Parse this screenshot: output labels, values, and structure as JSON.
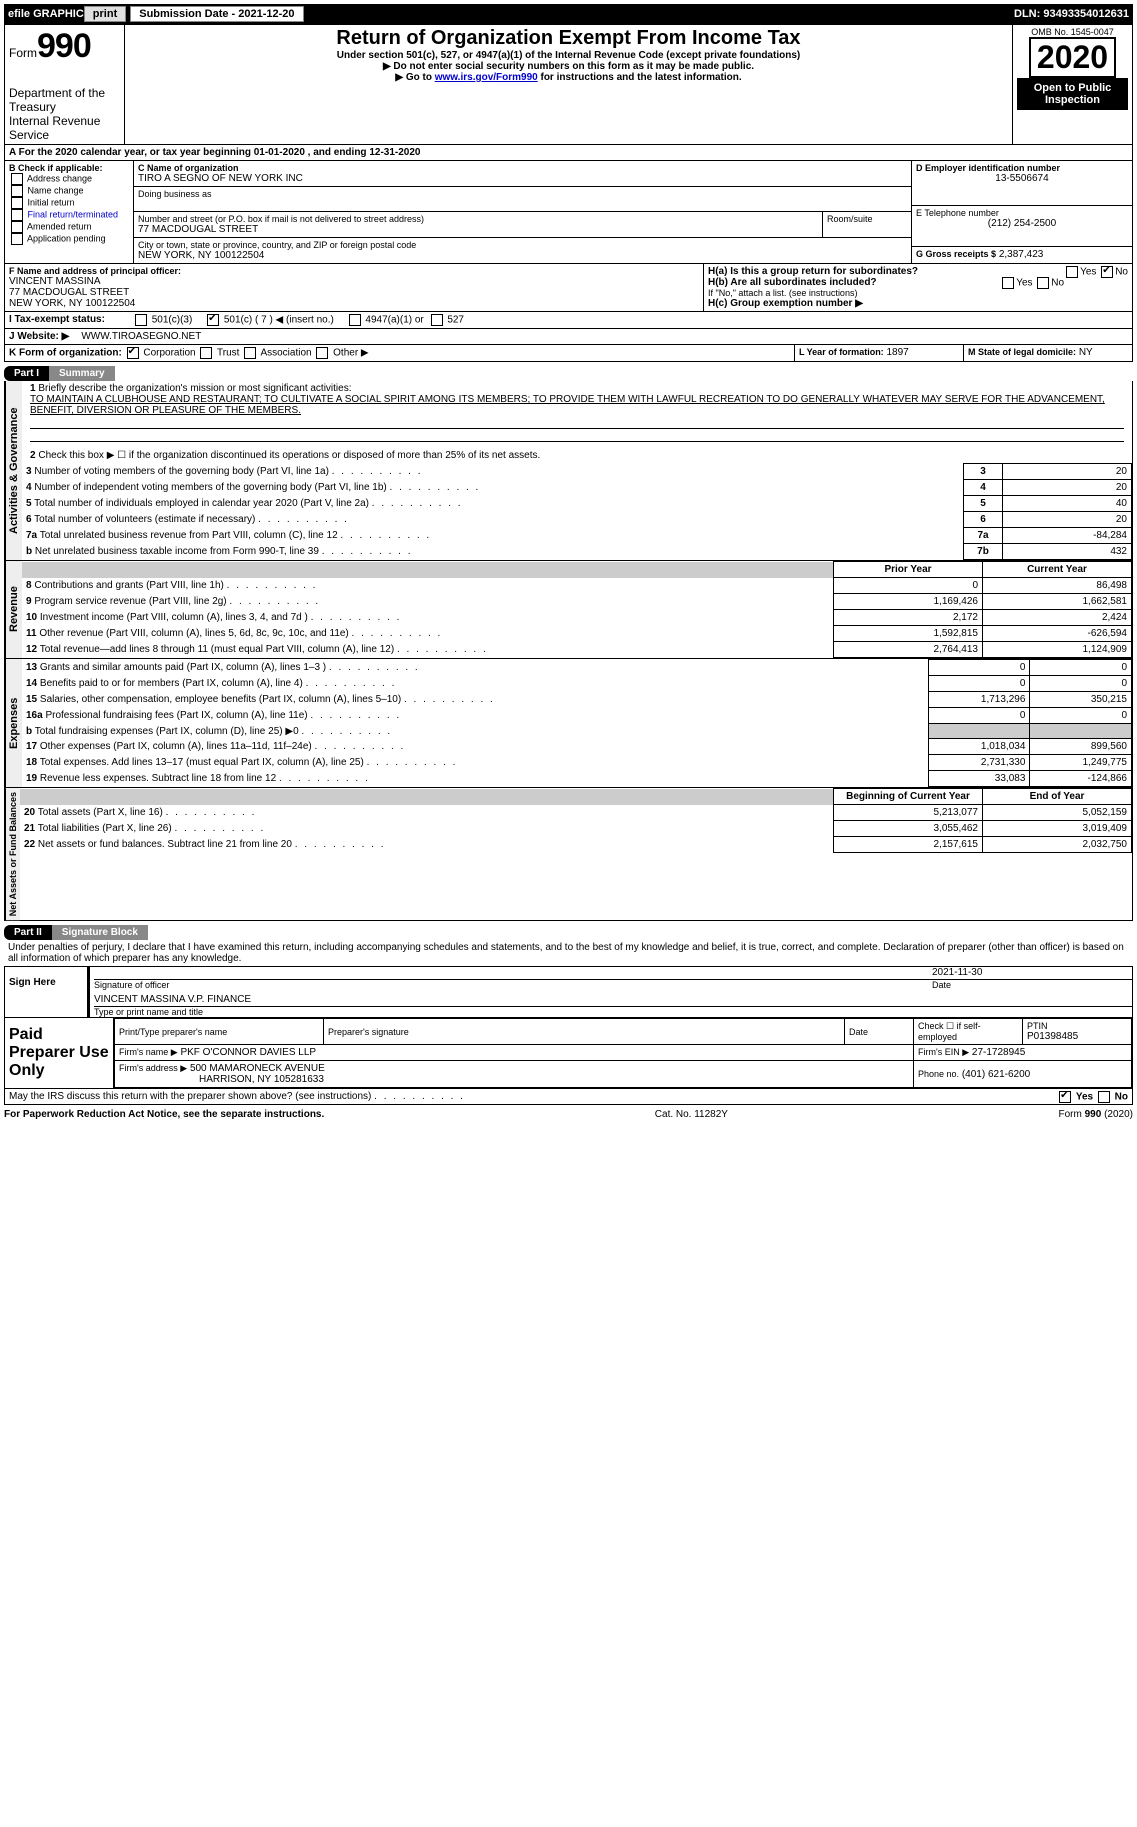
{
  "topbar": {
    "efile": "efile GRAPHIC",
    "print": "print",
    "sub_date_label": "Submission Date - 2021-12-20",
    "dln": "DLN: 93493354012631"
  },
  "header": {
    "form_label": "Form",
    "form_no": "990",
    "dept": "Department of the Treasury\nInternal Revenue Service",
    "title": "Return of Organization Exempt From Income Tax",
    "subtitle": "Under section 501(c), 527, or 4947(a)(1) of the Internal Revenue Code (except private foundations)",
    "note1": "▶ Do not enter social security numbers on this form as it may be made public.",
    "note2_pre": "▶ Go to ",
    "note2_link": "www.irs.gov/Form990",
    "note2_post": " for instructions and the latest information.",
    "omb": "OMB No. 1545-0047",
    "year": "2020",
    "open": "Open to Public Inspection"
  },
  "period": {
    "text": "A For the 2020 calendar year, or tax year beginning 01-01-2020   , and ending 12-31-2020"
  },
  "boxB": {
    "label": "B Check if applicable:",
    "items": [
      "Address change",
      "Name change",
      "Initial return",
      "Final return/terminated",
      "Amended return",
      "Application pending"
    ]
  },
  "boxC": {
    "label": "C Name of organization",
    "name": "TIRO A SEGNO OF NEW YORK INC",
    "dba_label": "Doing business as",
    "addr_label": "Number and street (or P.O. box if mail is not delivered to street address)",
    "room_label": "Room/suite",
    "addr": "77 MACDOUGAL STREET",
    "city_label": "City or town, state or province, country, and ZIP or foreign postal code",
    "city": "NEW YORK, NY  100122504"
  },
  "boxD": {
    "label": "D Employer identification number",
    "value": "13-5506674"
  },
  "boxE": {
    "label": "E Telephone number",
    "value": "(212) 254-2500"
  },
  "boxG": {
    "label": "G Gross receipts $",
    "value": "2,387,423"
  },
  "boxF": {
    "label": "F Name and address of principal officer:",
    "name": "VINCENT MASSINA",
    "addr1": "77 MACDOUGAL STREET",
    "addr2": "NEW YORK, NY  100122504"
  },
  "boxH": {
    "a_label": "H(a)  Is this a group return for subordinates?",
    "b_label": "H(b)  Are all subordinates included?",
    "b_note": "If \"No,\" attach a list. (see instructions)",
    "c_label": "H(c)  Group exemption number ▶",
    "yes": "Yes",
    "no": "No"
  },
  "boxI": {
    "label": "I  Tax-exempt status:",
    "opts": [
      "501(c)(3)",
      "501(c) ( 7 ) ◀ (insert no.)",
      "4947(a)(1) or",
      "527"
    ]
  },
  "boxJ": {
    "label": "J  Website: ▶",
    "value": "WWW.TIROASEGNO.NET"
  },
  "boxK": {
    "label": "K Form of organization:",
    "opts": [
      "Corporation",
      "Trust",
      "Association",
      "Other ▶"
    ]
  },
  "boxL": {
    "label": "L Year of formation:",
    "value": "1897"
  },
  "boxM": {
    "label": "M State of legal domicile:",
    "value": "NY"
  },
  "part1": {
    "label": "Part I",
    "title": "Summary",
    "q1": "Briefly describe the organization's mission or most significant activities:",
    "mission": "TO MAINTAIN A CLUBHOUSE AND RESTAURANT; TO CULTIVATE A SOCIAL SPIRIT AMONG ITS MEMBERS; TO PROVIDE THEM WITH LAWFUL RECREATION TO DO GENERALLY WHATEVER MAY SERVE FOR THE ADVANCEMENT, BENEFIT, DIVERSION OR PLEASURE OF THE MEMBERS.",
    "q2": "Check this box ▶ ☐ if the organization discontinued its operations or disposed of more than 25% of its net assets.",
    "governance_label": "Activities & Governance",
    "revenue_label": "Revenue",
    "expenses_label": "Expenses",
    "netassets_label": "Net Assets or Fund Balances",
    "lines_gov": [
      {
        "n": "3",
        "t": "Number of voting members of the governing body (Part VI, line 1a)",
        "box": "3",
        "v": "20"
      },
      {
        "n": "4",
        "t": "Number of independent voting members of the governing body (Part VI, line 1b)",
        "box": "4",
        "v": "20"
      },
      {
        "n": "5",
        "t": "Total number of individuals employed in calendar year 2020 (Part V, line 2a)",
        "box": "5",
        "v": "40"
      },
      {
        "n": "6",
        "t": "Total number of volunteers (estimate if necessary)",
        "box": "6",
        "v": "20"
      },
      {
        "n": "7a",
        "t": "Total unrelated business revenue from Part VIII, column (C), line 12",
        "box": "7a",
        "v": "-84,284"
      },
      {
        "n": "b",
        "t": "Net unrelated business taxable income from Form 990-T, line 39",
        "box": "7b",
        "v": "432"
      }
    ],
    "col_prior": "Prior Year",
    "col_current": "Current Year",
    "col_begin": "Beginning of Current Year",
    "col_end": "End of Year",
    "lines_rev": [
      {
        "n": "8",
        "t": "Contributions and grants (Part VIII, line 1h)",
        "p": "0",
        "c": "86,498"
      },
      {
        "n": "9",
        "t": "Program service revenue (Part VIII, line 2g)",
        "p": "1,169,426",
        "c": "1,662,581"
      },
      {
        "n": "10",
        "t": "Investment income (Part VIII, column (A), lines 3, 4, and 7d )",
        "p": "2,172",
        "c": "2,424"
      },
      {
        "n": "11",
        "t": "Other revenue (Part VIII, column (A), lines 5, 6d, 8c, 9c, 10c, and 11e)",
        "p": "1,592,815",
        "c": "-626,594"
      },
      {
        "n": "12",
        "t": "Total revenue—add lines 8 through 11 (must equal Part VIII, column (A), line 12)",
        "p": "2,764,413",
        "c": "1,124,909"
      }
    ],
    "lines_exp": [
      {
        "n": "13",
        "t": "Grants and similar amounts paid (Part IX, column (A), lines 1–3 )",
        "p": "0",
        "c": "0"
      },
      {
        "n": "14",
        "t": "Benefits paid to or for members (Part IX, column (A), line 4)",
        "p": "0",
        "c": "0"
      },
      {
        "n": "15",
        "t": "Salaries, other compensation, employee benefits (Part IX, column (A), lines 5–10)",
        "p": "1,713,296",
        "c": "350,215"
      },
      {
        "n": "16a",
        "t": "Professional fundraising fees (Part IX, column (A), line 11e)",
        "p": "0",
        "c": "0"
      },
      {
        "n": "b",
        "t": "Total fundraising expenses (Part IX, column (D), line 25) ▶0",
        "p": "",
        "c": "",
        "shaded": true
      },
      {
        "n": "17",
        "t": "Other expenses (Part IX, column (A), lines 11a–11d, 11f–24e)",
        "p": "1,018,034",
        "c": "899,560"
      },
      {
        "n": "18",
        "t": "Total expenses. Add lines 13–17 (must equal Part IX, column (A), line 25)",
        "p": "2,731,330",
        "c": "1,249,775"
      },
      {
        "n": "19",
        "t": "Revenue less expenses. Subtract line 18 from line 12",
        "p": "33,083",
        "c": "-124,866"
      }
    ],
    "lines_net": [
      {
        "n": "20",
        "t": "Total assets (Part X, line 16)",
        "p": "5,213,077",
        "c": "5,052,159"
      },
      {
        "n": "21",
        "t": "Total liabilities (Part X, line 26)",
        "p": "3,055,462",
        "c": "3,019,409"
      },
      {
        "n": "22",
        "t": "Net assets or fund balances. Subtract line 21 from line 20",
        "p": "2,157,615",
        "c": "2,032,750"
      }
    ]
  },
  "part2": {
    "label": "Part II",
    "title": "Signature Block",
    "penalties": "Under penalties of perjury, I declare that I have examined this return, including accompanying schedules and statements, and to the best of my knowledge and belief, it is true, correct, and complete. Declaration of preparer (other than officer) is based on all information of which preparer has any knowledge.",
    "sign_here": "Sign Here",
    "sig_officer": "Signature of officer",
    "sig_date": "Date",
    "sig_date_val": "2021-11-30",
    "officer_name": "VINCENT MASSINA  V.P. FINANCE",
    "type_name": "Type or print name and title",
    "paid": "Paid Preparer Use Only",
    "prep_name_label": "Print/Type preparer's name",
    "prep_sig_label": "Preparer's signature",
    "date_label": "Date",
    "check_label": "Check ☐ if self-employed",
    "ptin_label": "PTIN",
    "ptin": "P01398485",
    "firm_name_label": "Firm's name    ▶",
    "firm_name": "PKF O'CONNOR DAVIES LLP",
    "firm_ein_label": "Firm's EIN ▶",
    "firm_ein": "27-1728945",
    "firm_addr_label": "Firm's address ▶",
    "firm_addr1": "500 MAMARONECK AVENUE",
    "firm_addr2": "HARRISON, NY  105281633",
    "phone_label": "Phone no.",
    "phone": "(401) 621-6200",
    "discuss": "May the IRS discuss this return with the preparer shown above? (see instructions)",
    "yes": "Yes",
    "no": "No"
  },
  "footer": {
    "left": "For Paperwork Reduction Act Notice, see the separate instructions.",
    "mid": "Cat. No. 11282Y",
    "right": "Form 990 (2020)"
  }
}
